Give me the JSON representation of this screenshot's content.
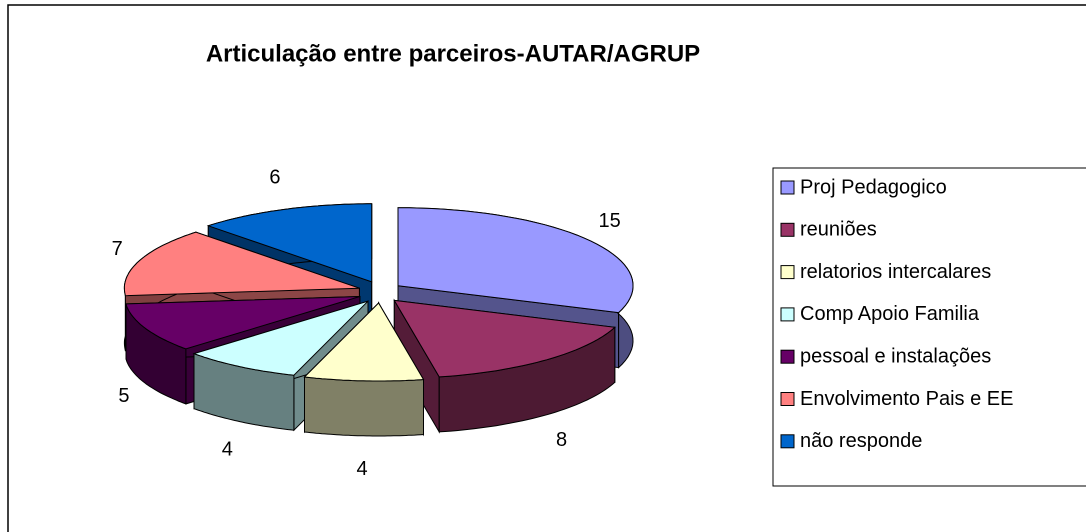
{
  "chart_data": {
    "type": "pie3d",
    "title": "Articulação entre parceiros-AUTAR/AGRUP",
    "categories": [
      "Proj Pedagogico",
      "reuniões",
      "relatorios intercalares",
      "Comp Apoio Familia",
      "pessoal e instalações",
      "Envolvimento Pais e EE",
      "não responde"
    ],
    "values": [
      15,
      8,
      4,
      4,
      5,
      7,
      6
    ],
    "colors": [
      "#9999ff",
      "#993366",
      "#ffffcc",
      "#ccffff",
      "#660066",
      "#ff8080",
      "#0066cc"
    ],
    "legend": "right"
  }
}
